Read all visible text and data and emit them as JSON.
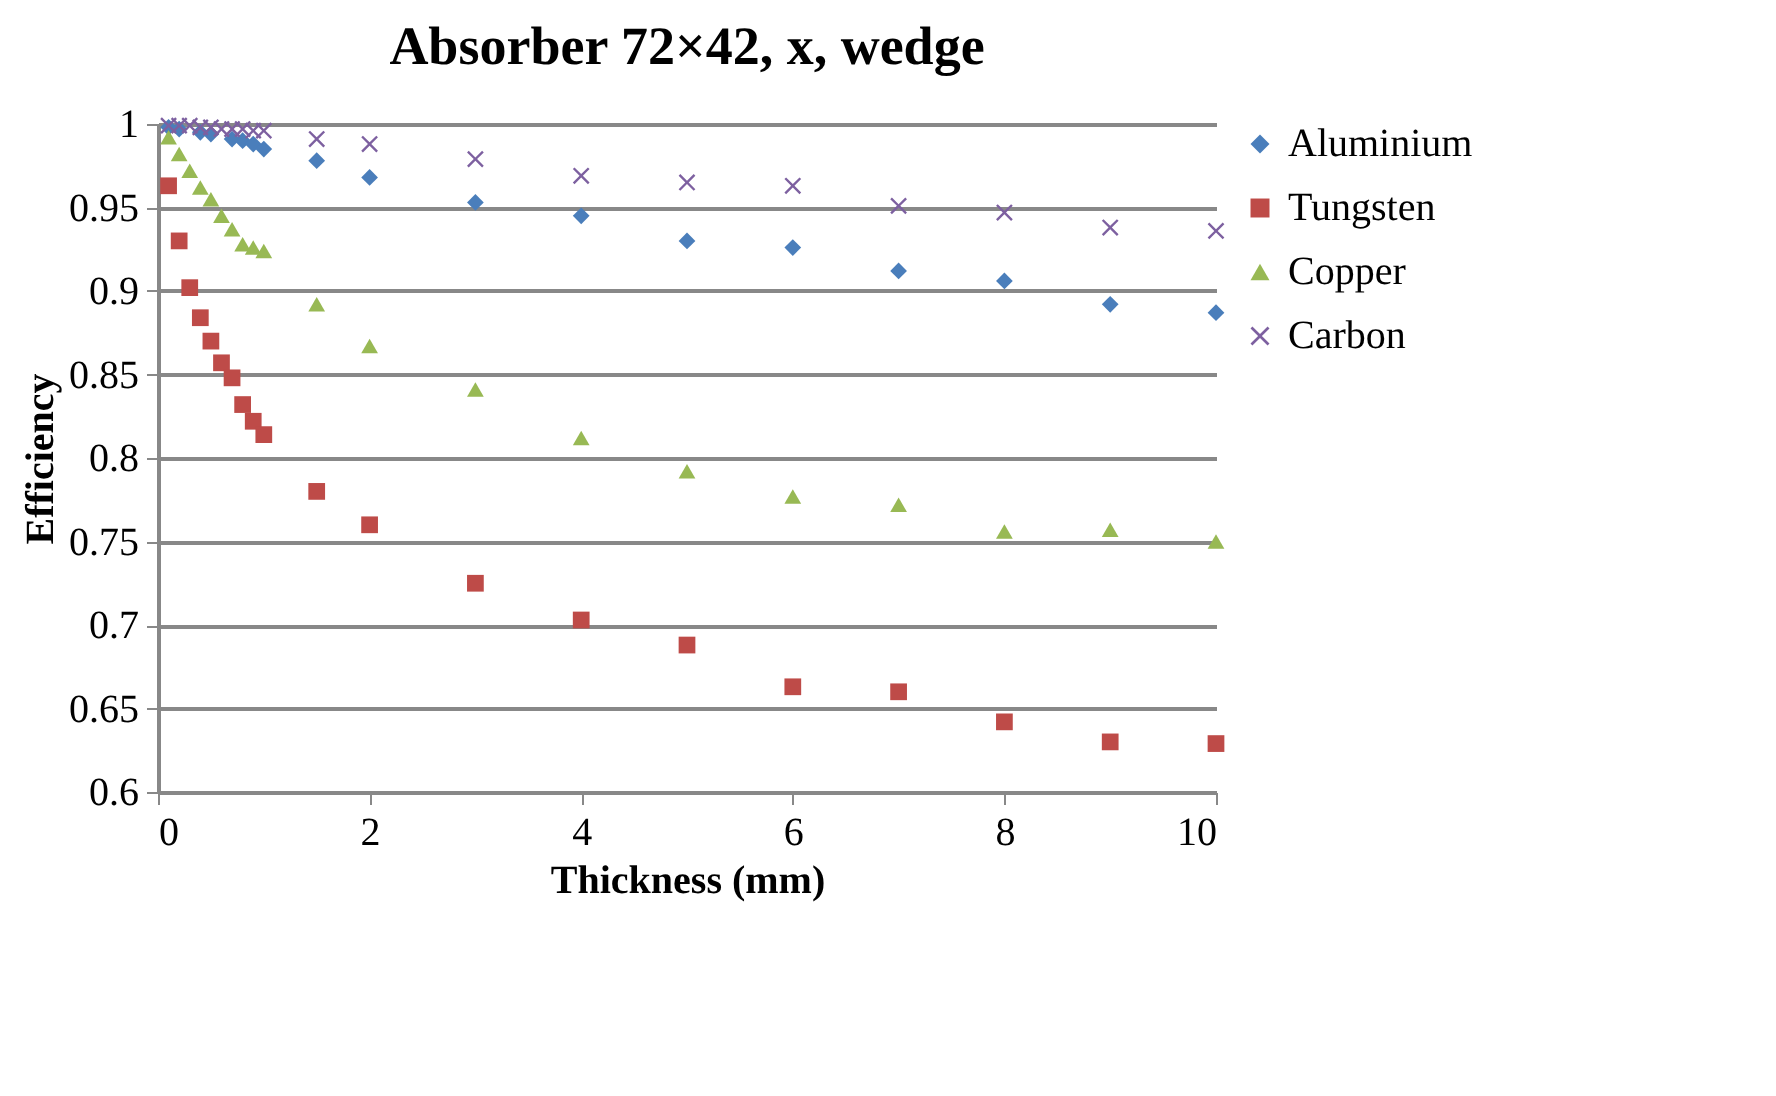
{
  "chart_data": {
    "type": "scatter",
    "title": "Absorber 72×42, x, wedge",
    "xlabel": "Thickness (mm)",
    "ylabel": "Efficiency",
    "x": [
      0.1,
      0.2,
      0.3,
      0.4,
      0.5,
      0.6,
      0.7,
      0.8,
      0.9,
      1.0,
      1.5,
      2,
      3,
      4,
      5,
      6,
      7,
      8,
      9,
      10
    ],
    "series": [
      {
        "name": "Aluminium",
        "color": "#4a7ebb",
        "marker": "diamond",
        "values": [
          0.998,
          0.997,
          null,
          0.995,
          0.994,
          null,
          0.991,
          0.99,
          0.988,
          0.985,
          0.978,
          0.968,
          0.953,
          0.945,
          0.93,
          0.926,
          0.912,
          0.906,
          0.892,
          0.887
        ]
      },
      {
        "name": "Tungsten",
        "color": "#be4b48",
        "marker": "square",
        "values": [
          0.963,
          0.93,
          0.902,
          0.884,
          0.87,
          0.857,
          0.848,
          0.832,
          0.822,
          0.814,
          0.78,
          0.76,
          0.725,
          0.703,
          0.688,
          0.663,
          0.66,
          0.642,
          0.63,
          0.629
        ]
      },
      {
        "name": "Copper",
        "color": "#98b954",
        "marker": "triangle",
        "values": [
          0.992,
          0.982,
          0.972,
          0.962,
          0.955,
          0.945,
          0.937,
          0.928,
          0.926,
          0.924,
          0.892,
          0.867,
          0.841,
          0.812,
          0.792,
          0.777,
          0.772,
          0.756,
          0.757,
          0.75
        ]
      },
      {
        "name": "Carbon",
        "color": "#7d60a0",
        "marker": "cross",
        "values": [
          0.999,
          0.999,
          0.999,
          0.998,
          0.998,
          0.997,
          0.997,
          0.997,
          0.996,
          0.996,
          0.991,
          0.988,
          0.979,
          0.969,
          0.965,
          0.963,
          0.951,
          0.947,
          0.938,
          0.936
        ]
      }
    ],
    "xlim": [
      0,
      10
    ],
    "xticks": [
      0,
      2,
      4,
      6,
      8,
      10
    ],
    "ylim": [
      0.6,
      1
    ],
    "yticks": [
      0.6,
      0.65,
      0.7,
      0.75,
      0.8,
      0.85,
      0.9,
      0.95,
      1
    ],
    "grid": "y",
    "legend": "right"
  }
}
